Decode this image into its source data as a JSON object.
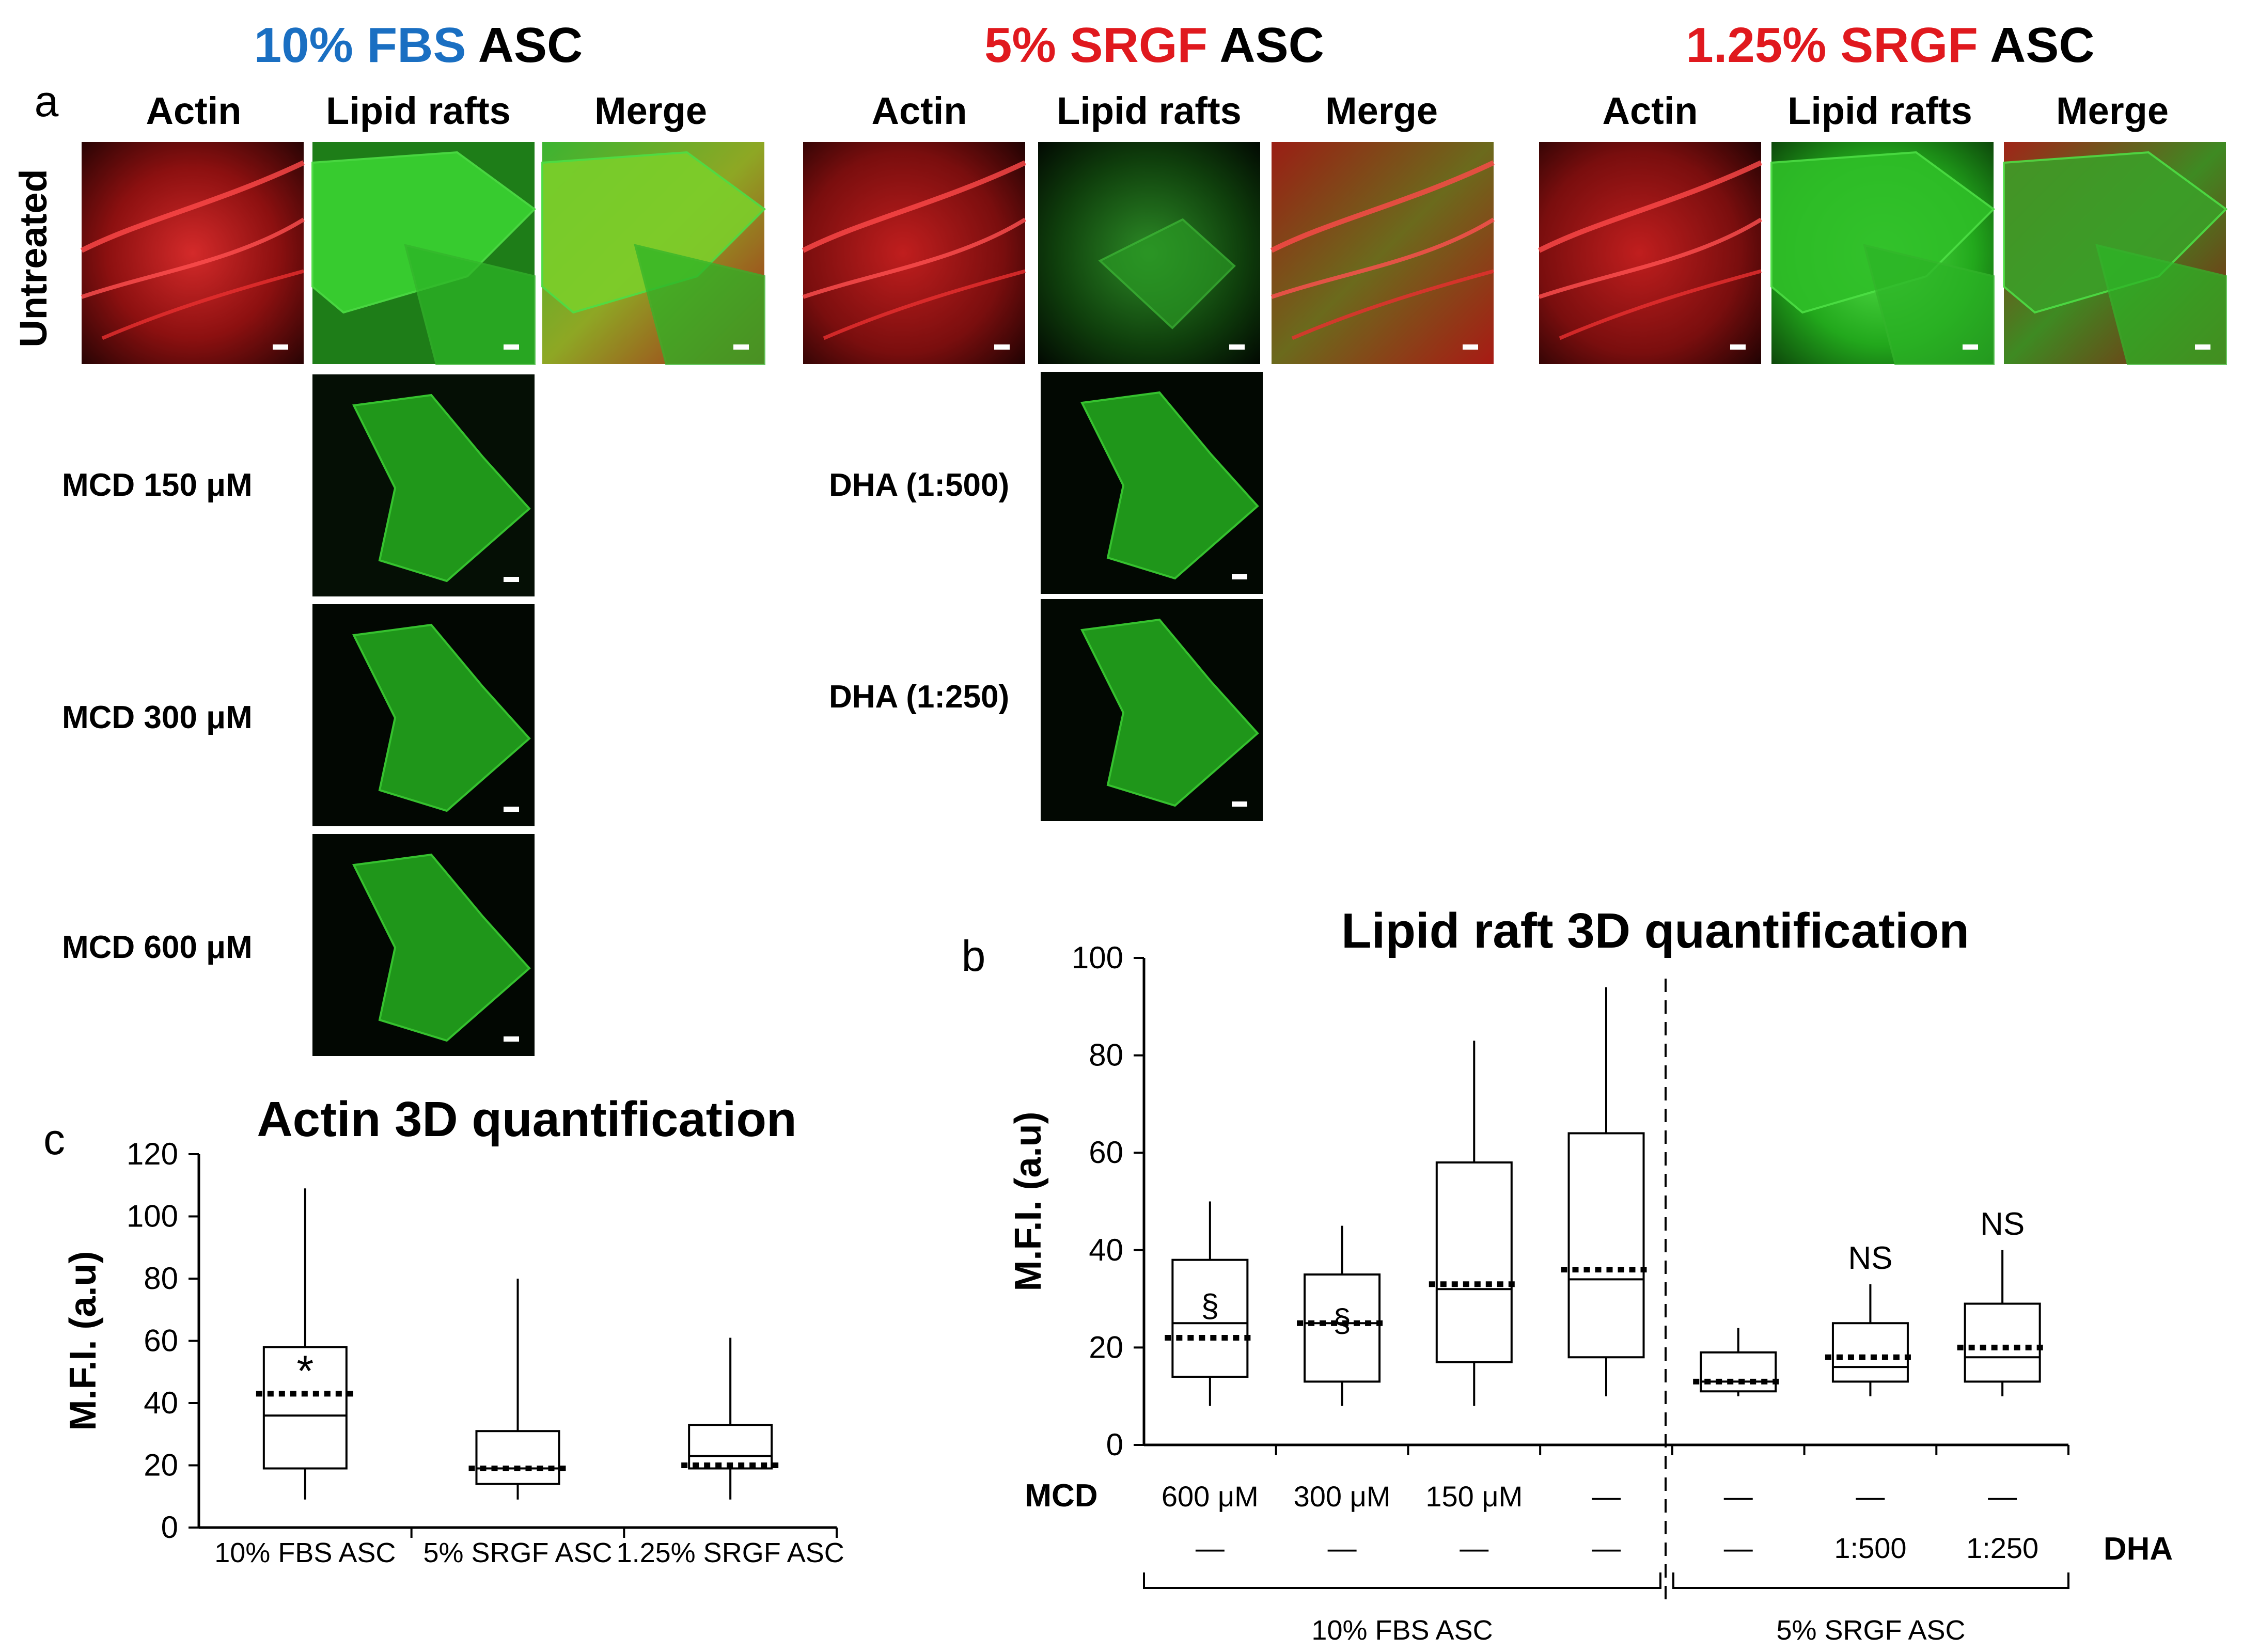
{
  "panel_a": {
    "letter": "a",
    "groups": [
      {
        "name_colored": "10% FBS",
        "name_black": "ASC",
        "color": "#1a6fc2"
      },
      {
        "name_colored": "5% SRGF",
        "name_black": "ASC",
        "color": "#e0191e"
      },
      {
        "name_colored": "1.25% SRGF",
        "name_black": "ASC",
        "color": "#e0191e"
      }
    ],
    "column_labels": [
      "Actin",
      "Lipid rafts",
      "Merge"
    ],
    "row_label_untreated": "Untreated",
    "fbs_treatments": [
      "MCD 150 μM",
      "MCD 300 μM",
      "MCD 600 μM"
    ],
    "srgf_treatments": [
      "DHA (1:500)",
      "DHA (1:250)"
    ]
  },
  "chart_data": [
    {
      "type": "box",
      "panel": "c",
      "title": "Actin 3D quantification",
      "ylabel": "M.F.I. (a.u)",
      "ylim": [
        0,
        120
      ],
      "yticks": [
        0,
        20,
        40,
        60,
        80,
        100,
        120
      ],
      "categories": [
        "10% FBS ASC",
        "5% SRGF ASC",
        "1.25% SRGF ASC"
      ],
      "boxes": [
        {
          "min": 9,
          "q1": 19,
          "median": 36,
          "q3": 58,
          "max": 109,
          "mean": 43,
          "mark": "*"
        },
        {
          "min": 9,
          "q1": 14,
          "median": 19,
          "q3": 31,
          "max": 80,
          "mean": 19,
          "mark": ""
        },
        {
          "min": 9,
          "q1": 19,
          "median": 23,
          "q3": 33,
          "max": 61,
          "mean": 20,
          "mark": ""
        }
      ]
    },
    {
      "type": "box",
      "panel": "b",
      "title": "Lipid raft 3D quantification",
      "ylabel": "M.F.I. (a.u)",
      "ylim": [
        0,
        100
      ],
      "yticks": [
        0,
        20,
        40,
        60,
        80,
        100
      ],
      "row_labels": {
        "mcd": "MCD",
        "dha": "DHA"
      },
      "mcd_values": [
        "600 μM",
        "300 μM",
        "150 μM",
        "—",
        "—",
        "—",
        "—"
      ],
      "dha_values": [
        "—",
        "—",
        "—",
        "—",
        "—",
        "1:500",
        "1:250"
      ],
      "group_labels": [
        "10% FBS ASC",
        "5% SRGF ASC"
      ],
      "boxes": [
        {
          "min": 8,
          "q1": 14,
          "median": 25,
          "q3": 38,
          "max": 50,
          "mean": 22,
          "mark": "§"
        },
        {
          "min": 8,
          "q1": 13,
          "median": 25,
          "q3": 35,
          "max": 45,
          "mean": 25,
          "mark": "§"
        },
        {
          "min": 8,
          "q1": 17,
          "median": 32,
          "q3": 58,
          "max": 83,
          "mean": 33,
          "mark": ""
        },
        {
          "min": 10,
          "q1": 18,
          "median": 34,
          "q3": 64,
          "max": 94,
          "mean": 36,
          "mark": ""
        },
        {
          "min": 10,
          "q1": 11,
          "median": 13,
          "q3": 19,
          "max": 24,
          "mean": 13,
          "mark": ""
        },
        {
          "min": 10,
          "q1": 13,
          "median": 16,
          "q3": 25,
          "max": 33,
          "mean": 18,
          "mark": "NS"
        },
        {
          "min": 10,
          "q1": 13,
          "median": 18,
          "q3": 29,
          "max": 40,
          "mean": 20,
          "mark": "NS"
        }
      ]
    }
  ]
}
